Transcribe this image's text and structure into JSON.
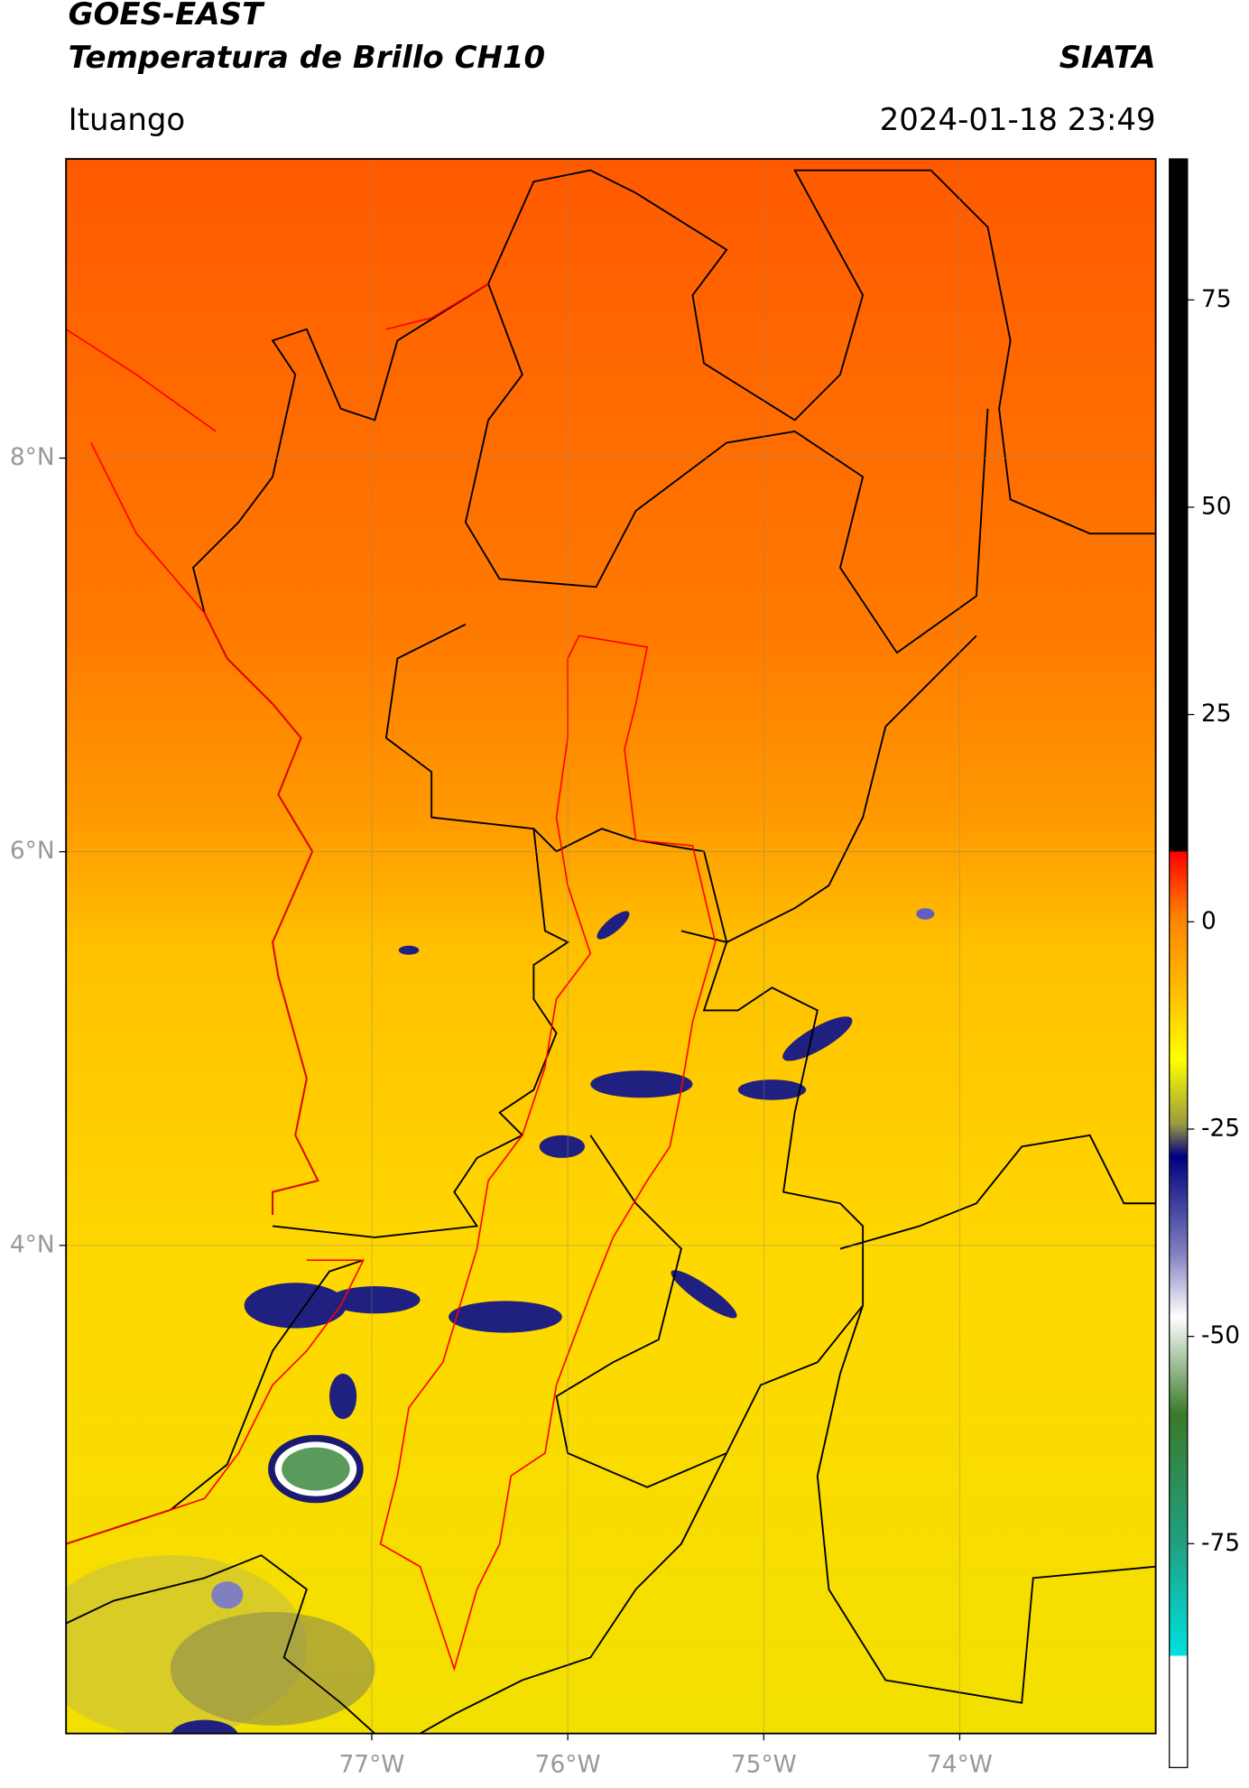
{
  "header": {
    "title": "GOES-EAST",
    "subtitle": "Temperatura de Brillo CH10",
    "brand": "SIATA",
    "location": "Ituango",
    "timestamp": "2024-01-18 23:49"
  },
  "map": {
    "xlim": [
      -78.56,
      -73.0
    ],
    "ylim": [
      1.52,
      9.52
    ],
    "xticks": [
      {
        "value": -77,
        "label": "77°W"
      },
      {
        "value": -76,
        "label": "76°W"
      },
      {
        "value": -75,
        "label": "75°W"
      },
      {
        "value": -74,
        "label": "74°W"
      }
    ],
    "yticks": [
      {
        "value": 8,
        "label": "8°N"
      },
      {
        "value": 6,
        "label": "6°N"
      },
      {
        "value": 4,
        "label": "4°N"
      }
    ],
    "grid": true
  },
  "colorbar": {
    "lim": [
      -102,
      92
    ],
    "ticks": [
      75,
      50,
      25,
      0,
      -25,
      -50,
      -75
    ]
  }
}
